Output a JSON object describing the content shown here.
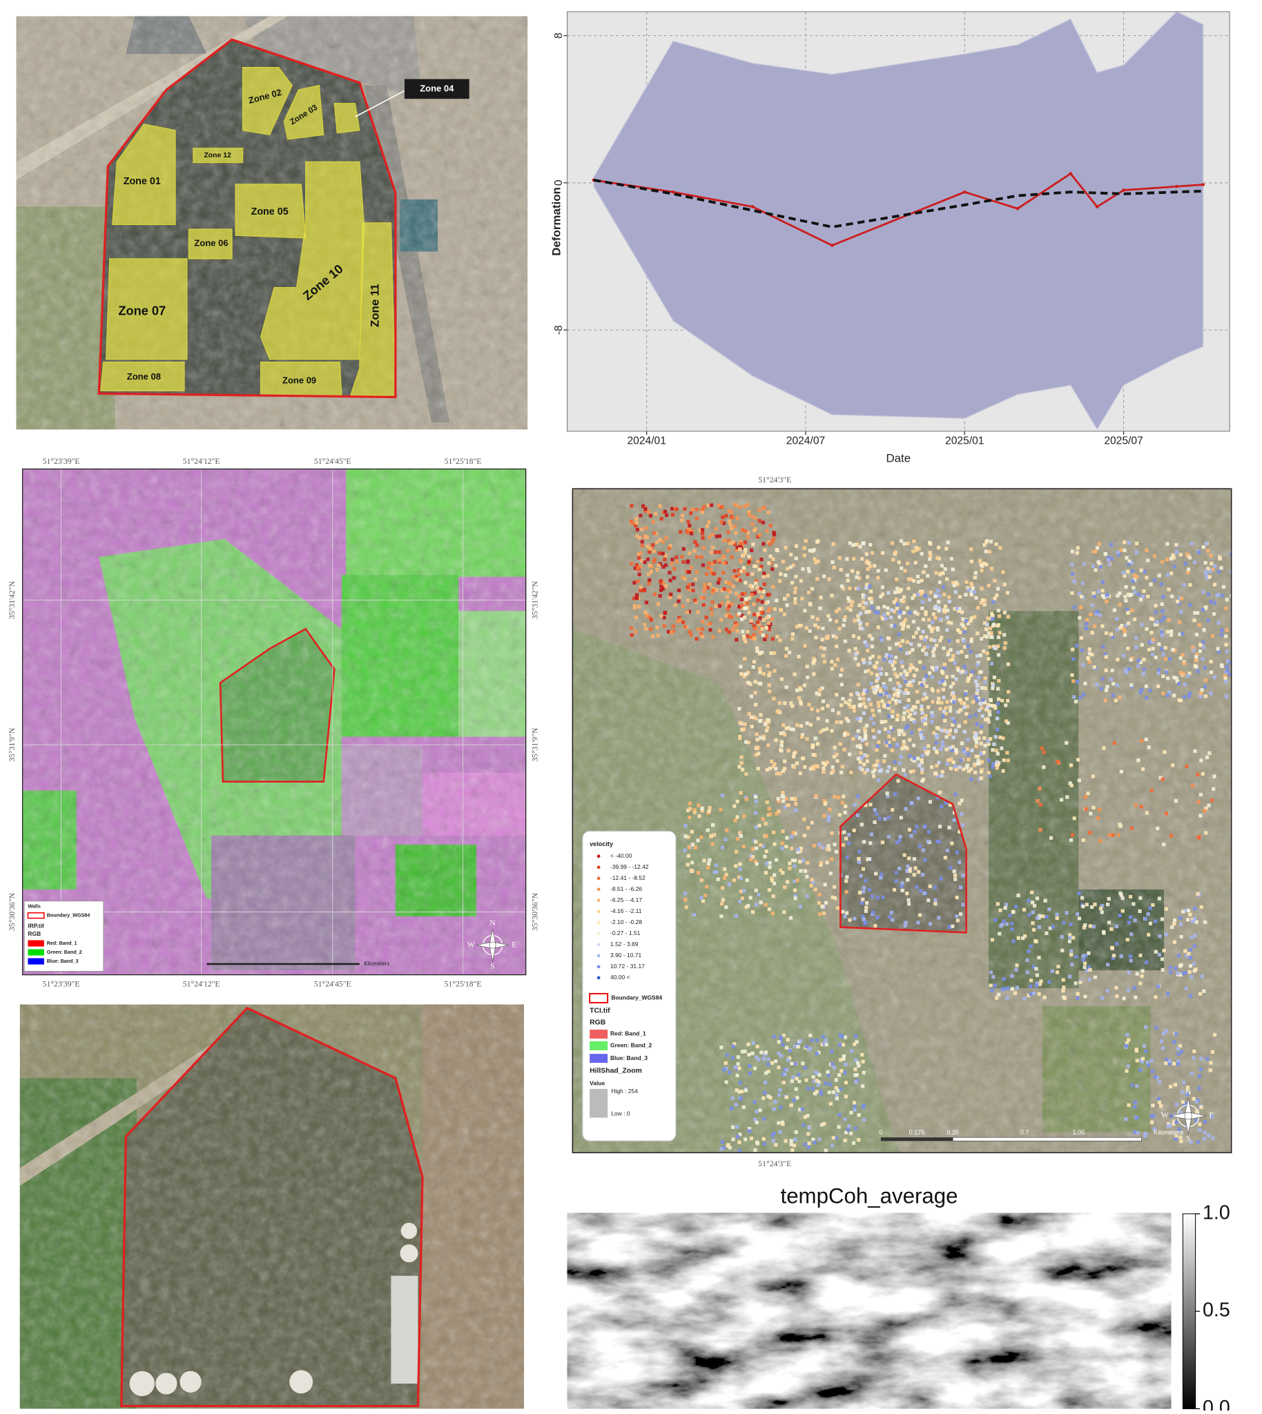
{
  "zone_map": {
    "zones": [
      "Zone 01",
      "Zone 02",
      "Zone 03",
      "Zone 04",
      "Zone 05",
      "Zone 06",
      "Zone 07",
      "Zone 08",
      "Zone 09",
      "Zone 10",
      "Zone 11",
      "Zone 12"
    ]
  },
  "irp_map": {
    "longitudes": [
      "51°23'39\"E",
      "51°24'12\"E",
      "51°24'45\"E",
      "51°25'18\"E"
    ],
    "latitudes": [
      "35°31'42\"N",
      "35°31'9\"N",
      "35°30'36\"N"
    ],
    "legend": [
      "Walls",
      "Boundary_WGS84",
      "IRP.tif",
      "RGB",
      "Red:   Band_1",
      "Green: Band_2",
      "Blue:  Band_3"
    ],
    "legend_colors": [
      "#ff0000",
      "#00dd00",
      "#0000ff"
    ],
    "scale_unit": "Kilometers",
    "compass": [
      "N",
      "S",
      "E",
      "W"
    ]
  },
  "velocity_map": {
    "longitude": "51°24'3\"E",
    "legend_title": "velocity",
    "legend_classes": [
      "< -40.00",
      "-39.99 - -12.42",
      "-12.41 - -8.52",
      "-8.51 - -6.26",
      "-6.25 - -4.17",
      "-4.16 - -2.11",
      "-2.10 - -0.28",
      "-0.27 - 1.51",
      "1.52 - 3.89",
      "3.90 - 10.71",
      "10.72 - 31.17",
      "40.00 <"
    ],
    "legend_colors": [
      "#c0171e",
      "#e23a1f",
      "#f26a35",
      "#f7904f",
      "#fbb36f",
      "#fdd093",
      "#fee7b6",
      "#f3efd8",
      "#cfd8f4",
      "#a6b5ee",
      "#7a8ee6",
      "#2a53d3"
    ],
    "legend_rest": [
      "Boundary_WGS84",
      "TCI.tif",
      "RGB",
      "Red:   Band_1",
      "Green: Band_2",
      "Blue:  Band_3",
      "HillShad_Zoom",
      "Value",
      "High : 254",
      "Low : 0"
    ],
    "band_colors": [
      "#f06060",
      "#66ee66",
      "#6666ee"
    ],
    "scale_labels": [
      "0",
      "0.175",
      "0.35",
      "0.7",
      "1.05",
      "Kilometers"
    ],
    "compass": [
      "N",
      "S",
      "E",
      "W"
    ]
  },
  "chart_data": [
    {
      "type": "line",
      "xlabel": "Date",
      "ylabel": "Deformation",
      "x": [
        "2023/11",
        "2024/02",
        "2024/05",
        "2024/08",
        "2025/01",
        "2025/03",
        "2025/05",
        "2025/06",
        "2025/07",
        "2025/09",
        "2025/10"
      ],
      "xlim": [
        "2023/10",
        "2025/11"
      ],
      "xticks": [
        "2024/01",
        "2024/07",
        "2025/01",
        "2025/07"
      ],
      "ylim": [
        -13.5,
        9.3
      ],
      "yticks": [
        8,
        0,
        -8
      ],
      "grid": true,
      "band": {
        "color": "#a9aacb",
        "upper": [
          0.3,
          7.7,
          6.5,
          5.9,
          7.0,
          7.5,
          8.9,
          6.0,
          6.4,
          9.3,
          8.6
        ],
        "lower": [
          -0.2,
          -7.5,
          -10.5,
          -12.6,
          -12.8,
          -11.5,
          -11.0,
          -13.4,
          -11.0,
          -9.5,
          -8.9
        ]
      },
      "series": [
        {
          "color": "#cc1f1f",
          "dashed": false,
          "values": [
            0.15,
            -0.5,
            -1.3,
            -3.4,
            -0.5,
            -1.4,
            0.5,
            -1.3,
            -0.4,
            -0.2,
            -0.1
          ]
        },
        {
          "color": "#111111",
          "dashed": true,
          "values": [
            0.15,
            -0.6,
            -1.5,
            -2.4,
            -1.2,
            -0.7,
            -0.5,
            -0.55,
            -0.6,
            -0.5,
            -0.45
          ]
        }
      ]
    },
    {
      "type": "heatmap",
      "title": "tempCoh_average",
      "clim": [
        0,
        1
      ],
      "colorbar_ticks": [
        {
          "value": 0,
          "label": "0.0"
        },
        {
          "value": 0.5,
          "label": "0.5"
        },
        {
          "value": 1,
          "label": "1.0"
        }
      ]
    }
  ]
}
